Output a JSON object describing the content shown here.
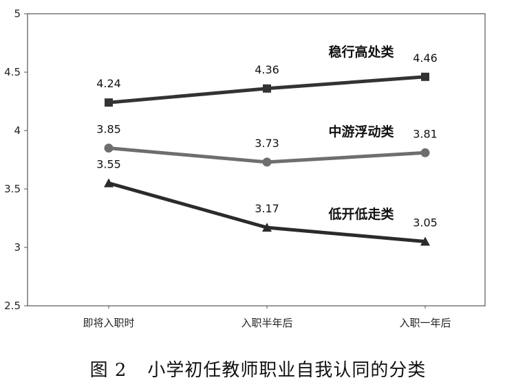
{
  "chart_data": {
    "type": "line",
    "categories": [
      "即将入职时",
      "入职半年后",
      "入职一年后"
    ],
    "ylim": [
      2.5,
      5
    ],
    "yticks": [
      "2.5",
      "3",
      "3.5",
      "4",
      "4.5",
      "5"
    ],
    "grid": false,
    "series": [
      {
        "name": "稳行高处类",
        "values": [
          4.24,
          4.36,
          4.46
        ],
        "labels": [
          "4.24",
          "4.36",
          "4.46"
        ],
        "marker": "square",
        "color": "#333333"
      },
      {
        "name": "中游浮动类",
        "values": [
          3.85,
          3.73,
          3.81
        ],
        "labels": [
          "3.85",
          "3.73",
          "3.81"
        ],
        "marker": "circle",
        "color": "#6e6e6e"
      },
      {
        "name": "低开低走类",
        "values": [
          3.55,
          3.17,
          3.05
        ],
        "labels": [
          "3.55",
          "3.17",
          "3.05"
        ],
        "marker": "triangle",
        "color": "#2b2b2b"
      }
    ]
  },
  "caption": {
    "figure_number": "图 2",
    "title": "小学初任教师职业自我认同的分类"
  }
}
